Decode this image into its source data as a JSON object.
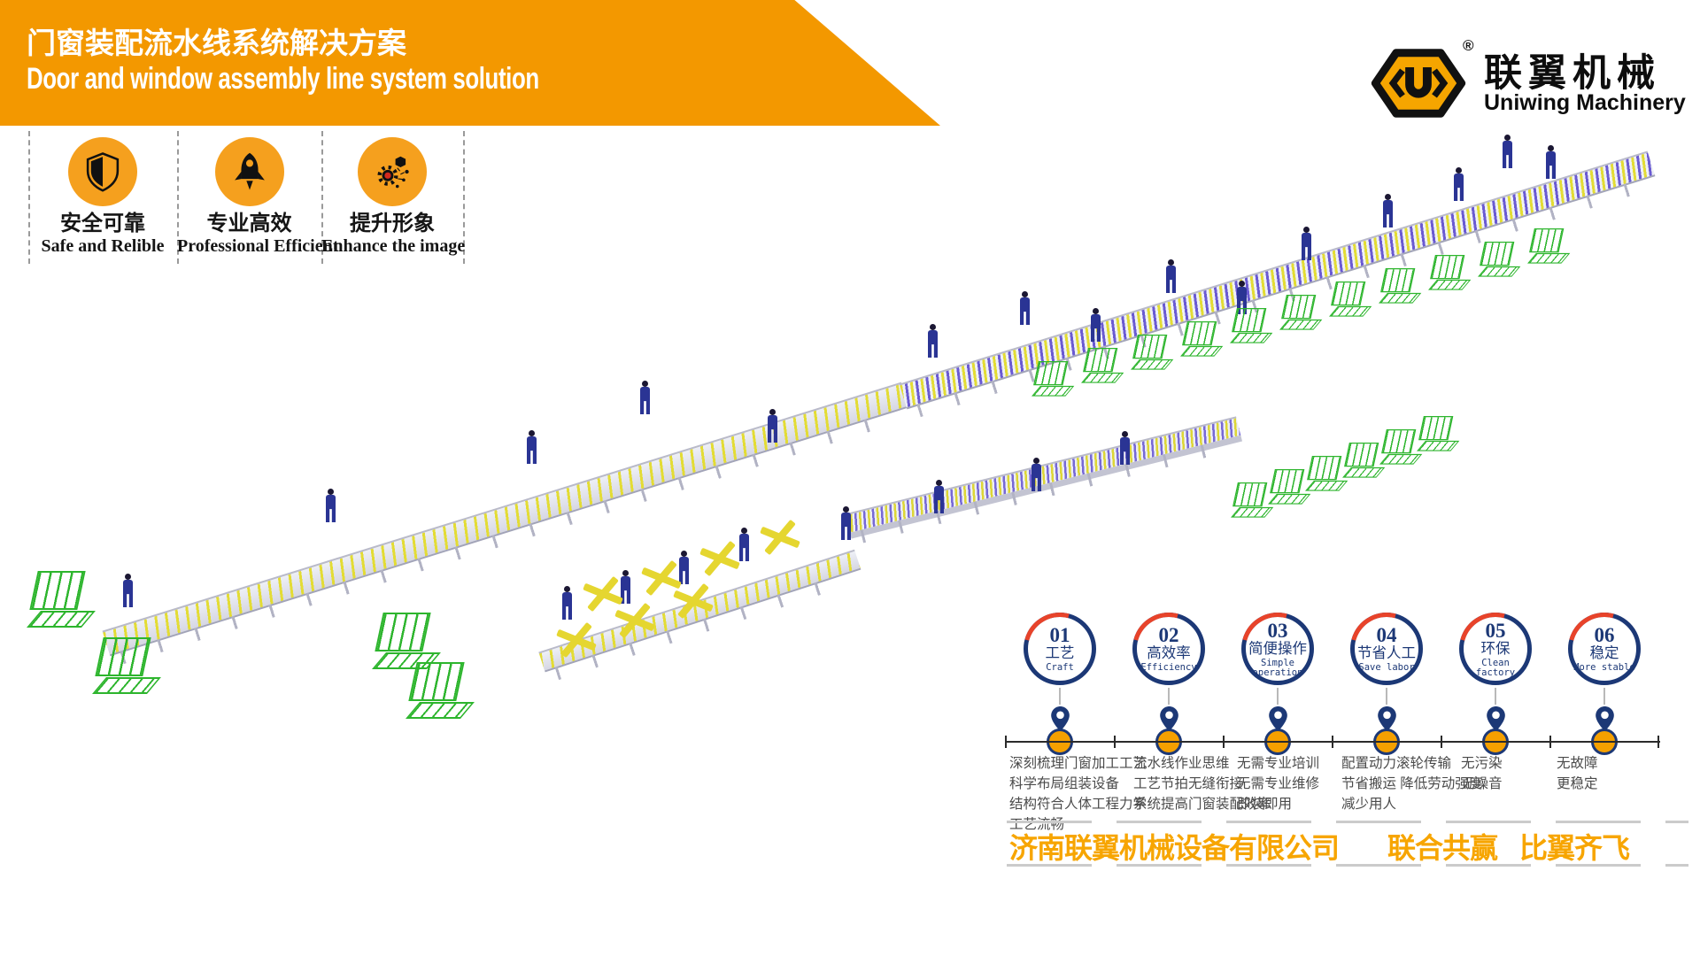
{
  "header": {
    "title_zh": "门窗装配流水线系统解决方案",
    "title_en": "Door and window assembly line system solution"
  },
  "logo": {
    "icon": "uniwing-hexagon-logo",
    "reg_mark": "®",
    "name_zh": "联翼机械",
    "name_en": "Uniwing Machinery"
  },
  "badges": [
    {
      "icon": "shield-icon",
      "label_zh": "安全可靠",
      "label_en": "Safe and Relible"
    },
    {
      "icon": "rocket-icon",
      "label_zh": "专业高效",
      "label_en": "Professional Efficient"
    },
    {
      "icon": "gear-network-icon",
      "label_zh": "提升形象",
      "label_en": "Enhance the image"
    }
  ],
  "timeline": {
    "pin_icon": "location-pin-icon",
    "steps": [
      {
        "num": "01",
        "zh": "工艺",
        "en": "Craft",
        "details": [
          "深刻梳理门窗加工工艺",
          "科学布局组装设备",
          "结构符合人体工程力学",
          "工艺流畅"
        ]
      },
      {
        "num": "02",
        "zh": "高效率",
        "en": "Efficiency",
        "details": [
          "流水线作业思维",
          "工艺节拍无缝衔接",
          "系统提高门窗装配效率"
        ]
      },
      {
        "num": "03",
        "zh": "简便操作",
        "en": "Simple operation",
        "details": [
          "无需专业培训",
          "无需专业维修",
          "即装即用"
        ]
      },
      {
        "num": "04",
        "zh": "节省人工",
        "en": "Save labor",
        "details": [
          "配置动力滚轮传输",
          "节省搬运 降低劳动强度",
          "减少用人"
        ]
      },
      {
        "num": "05",
        "zh": "环保",
        "en": "Clean factory",
        "details": [
          "无污染",
          "无噪音"
        ]
      },
      {
        "num": "06",
        "zh": "稳定",
        "en": "More stable",
        "details": [
          "无故障",
          "更稳定"
        ]
      }
    ]
  },
  "footer": {
    "company": "济南联翼机械设备有限公司",
    "slogan_left": "联合共赢",
    "slogan_right": "比翼齐飞"
  },
  "colors": {
    "banner_orange": "#F39800",
    "badge_orange": "#F5A01E",
    "slogan_orange": "#F7A500",
    "ring_navy": "#1C3876",
    "arc_red": "#E8432A",
    "dot_orange": "#F5A000",
    "rack_green": "#2DB52D",
    "roller_yellow": "#E3DC35",
    "roller_purple": "#6A5AD2",
    "detail_text_gray": "#4A4A4A"
  }
}
